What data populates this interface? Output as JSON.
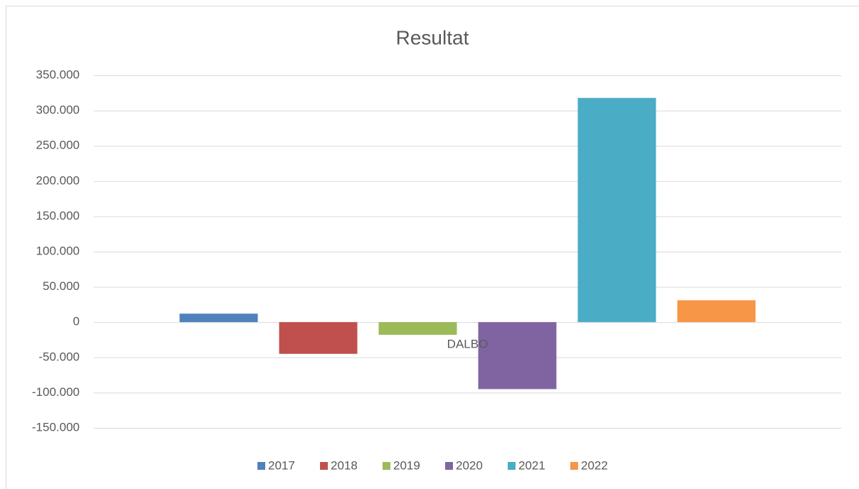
{
  "chart_data": {
    "type": "bar",
    "title": "Resultat",
    "categories": [
      "DALBO"
    ],
    "series": [
      {
        "name": "2017",
        "color": "#4f81bd",
        "values": [
          12000
        ]
      },
      {
        "name": "2018",
        "color": "#c0504d",
        "values": [
          -45000
        ]
      },
      {
        "name": "2019",
        "color": "#9bbb59",
        "values": [
          -18000
        ]
      },
      {
        "name": "2020",
        "color": "#8064a2",
        "values": [
          -95000
        ]
      },
      {
        "name": "2021",
        "color": "#4bacc6",
        "values": [
          318000
        ]
      },
      {
        "name": "2022",
        "color": "#f79646",
        "values": [
          31000
        ]
      }
    ],
    "ylim": [
      -150000,
      350000
    ],
    "yticks": [
      {
        "value": -150000,
        "label": "-150.000"
      },
      {
        "value": -100000,
        "label": "-100.000"
      },
      {
        "value": -50000,
        "label": "-50.000"
      },
      0,
      {
        "value": 50000,
        "label": "50.000"
      },
      {
        "value": 100000,
        "label": "100.000"
      },
      {
        "value": 150000,
        "label": "150.000"
      },
      {
        "value": 200000,
        "label": "200.000"
      },
      {
        "value": 250000,
        "label": "250.000"
      },
      {
        "value": 300000,
        "label": "300.000"
      },
      {
        "value": 350000,
        "label": "350.000"
      }
    ],
    "grid": true,
    "legend": "bottom"
  }
}
